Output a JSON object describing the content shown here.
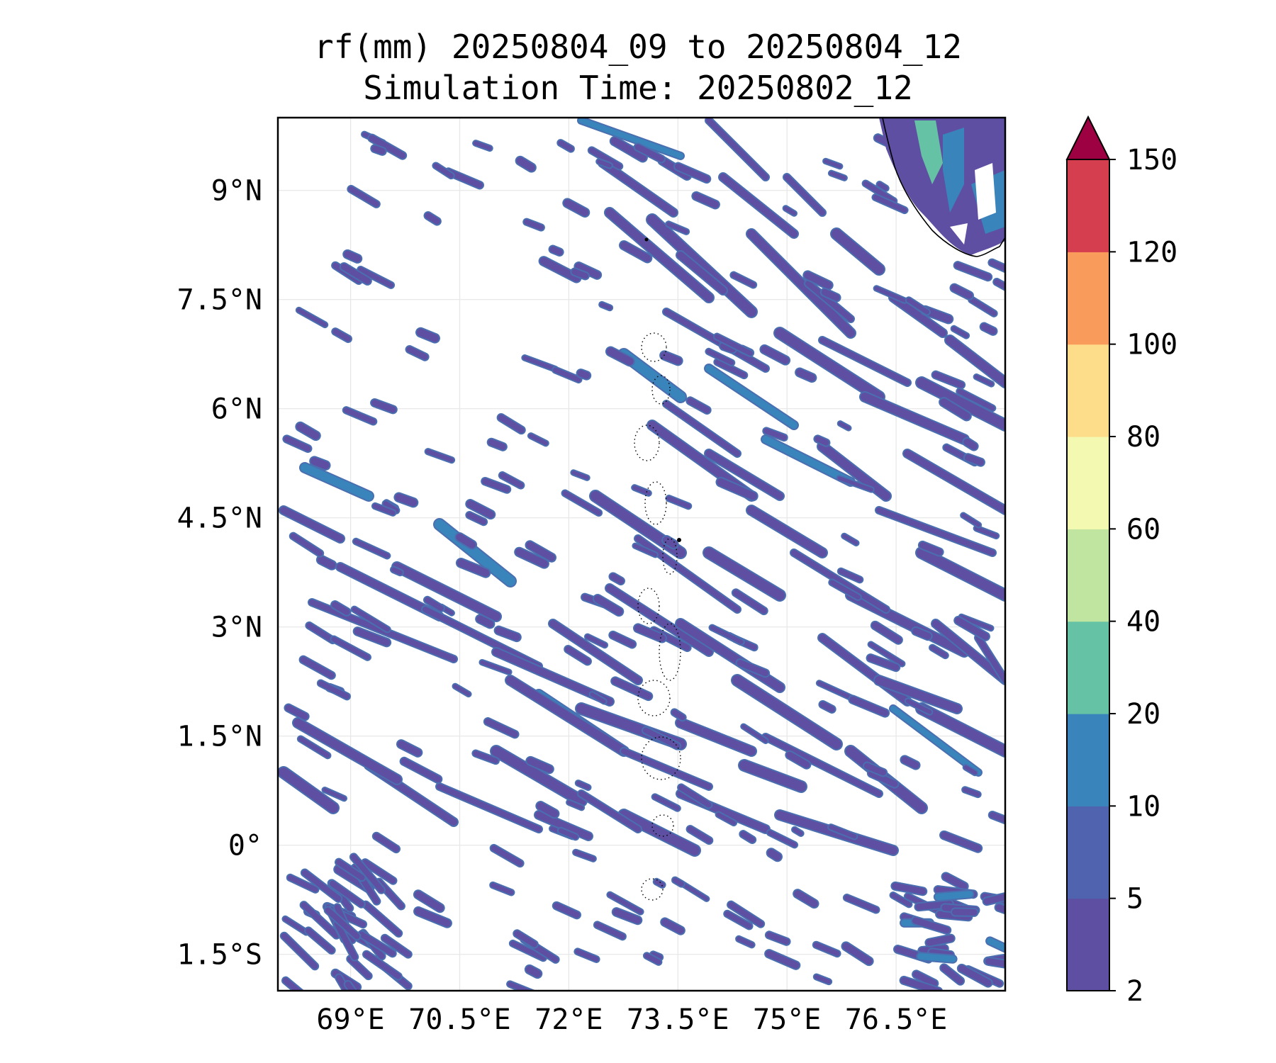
{
  "title": "rf(mm) 20250804_09 to 20250804_12",
  "subtitle": "Simulation Time: 20250802_12",
  "map": {
    "lon_range": [
      68.0,
      78.0
    ],
    "lat_range": [
      -2.0,
      10.0
    ],
    "gridlines": true,
    "lon_ticks": [
      {
        "value": 69.0,
        "label": "69°E"
      },
      {
        "value": 70.5,
        "label": "70.5°E"
      },
      {
        "value": 72.0,
        "label": "72°E"
      },
      {
        "value": 73.5,
        "label": "73.5°E"
      },
      {
        "value": 75.0,
        "label": "75°E"
      },
      {
        "value": 76.5,
        "label": "76.5°E"
      }
    ],
    "lat_ticks": [
      {
        "value": 9.0,
        "label": "9°N"
      },
      {
        "value": 7.5,
        "label": "7.5°N"
      },
      {
        "value": 6.0,
        "label": "6°N"
      },
      {
        "value": 4.5,
        "label": "4.5°N"
      },
      {
        "value": 3.0,
        "label": "3°N"
      },
      {
        "value": 1.5,
        "label": "1.5°N"
      },
      {
        "value": 0.0,
        "label": "0°"
      },
      {
        "value": -1.5,
        "label": "1.5°S"
      }
    ],
    "features": [
      "coastline of southern India (top-right)",
      "Maldives atolls (dotted, near 73.5°E)"
    ]
  },
  "colorbar": {
    "position": "right",
    "extend": "max",
    "extend_color": "#9e0142",
    "levels": [
      {
        "value": 2,
        "label": "2"
      },
      {
        "value": 5,
        "label": "5"
      },
      {
        "value": 10,
        "label": "10"
      },
      {
        "value": 20,
        "label": "20"
      },
      {
        "value": 40,
        "label": "40"
      },
      {
        "value": 60,
        "label": "60"
      },
      {
        "value": 80,
        "label": "80"
      },
      {
        "value": 100,
        "label": "100"
      },
      {
        "value": 120,
        "label": "120"
      },
      {
        "value": 150,
        "label": "150"
      }
    ],
    "colors": [
      "#5e4fa2",
      "#4f63ae",
      "#3a84bc",
      "#66c2a5",
      "#bfe5a0",
      "#f3f9b0",
      "#fddd8a",
      "#f99b5a",
      "#d53e4f"
    ]
  },
  "rain_colors": {
    "low": "#5e4fa2",
    "low_edge": "#4a6fb0",
    "moderate": "#3a84bc",
    "heavy": "#66c2a5"
  }
}
